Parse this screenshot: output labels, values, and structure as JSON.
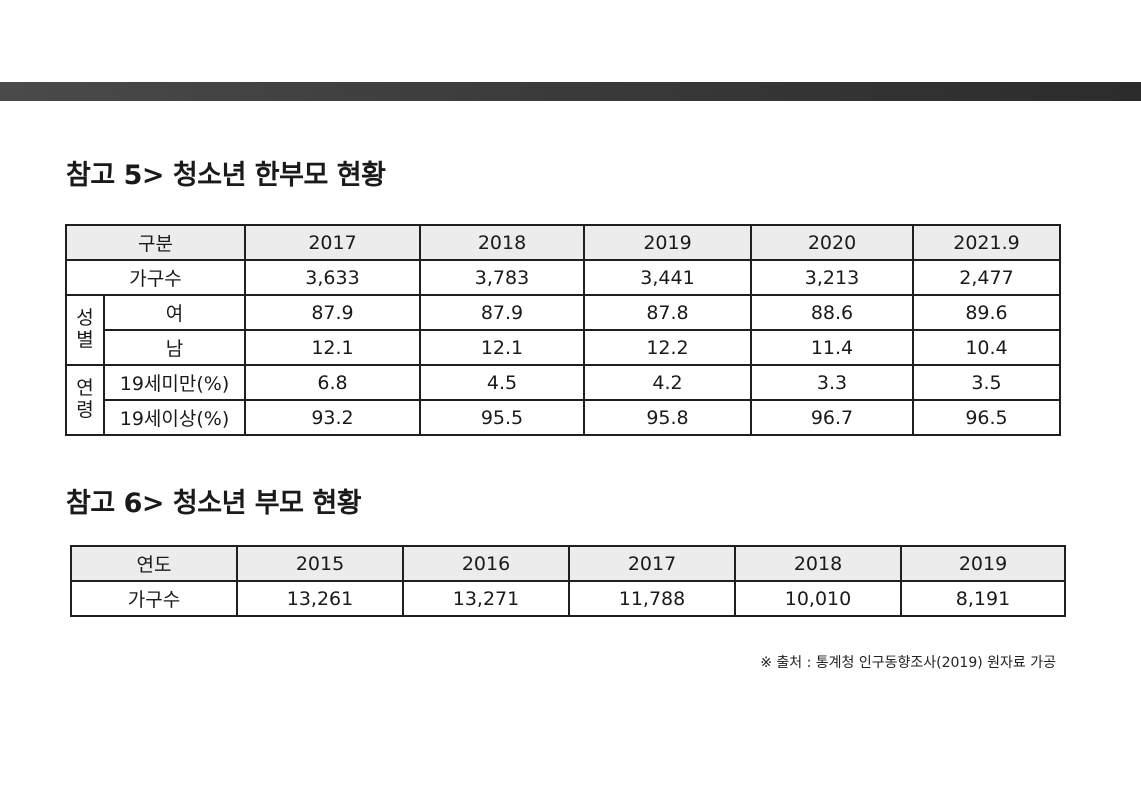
{
  "top_bar": {},
  "section5": {
    "title": "참고 5> 청소년 한부모 현황",
    "header": {
      "label": "구분",
      "years": [
        "2017",
        "2018",
        "2019",
        "2020",
        "2021.9"
      ]
    },
    "households": {
      "label": "가구수",
      "values": [
        "3,633",
        "3,783",
        "3,441",
        "3,213",
        "2,477"
      ]
    },
    "gender": {
      "group_chars": [
        "성",
        "별"
      ],
      "female": {
        "label": "여",
        "values": [
          "87.9",
          "87.9",
          "87.8",
          "88.6",
          "89.6"
        ]
      },
      "male": {
        "label": "남",
        "values": [
          "12.1",
          "12.1",
          "12.2",
          "11.4",
          "10.4"
        ]
      }
    },
    "age": {
      "group_chars": [
        "연",
        "령"
      ],
      "under19": {
        "label": "19세미만(%)",
        "values": [
          "6.8",
          "4.5",
          "4.2",
          "3.3",
          "3.5"
        ]
      },
      "over19": {
        "label": "19세이상(%)",
        "values": [
          "93.2",
          "95.5",
          "95.8",
          "96.7",
          "96.5"
        ]
      }
    }
  },
  "section6": {
    "title": "참고 6> 청소년 부모 현황",
    "header": {
      "label": "연도",
      "years": [
        "2015",
        "2016",
        "2017",
        "2018",
        "2019"
      ]
    },
    "households": {
      "label": "가구수",
      "values": [
        "13,261",
        "13,271",
        "11,788",
        "10,010",
        "8,191"
      ]
    }
  },
  "source_note": "※ 출처 : 통계청 인구동향조사(2019) 원자료 가공"
}
